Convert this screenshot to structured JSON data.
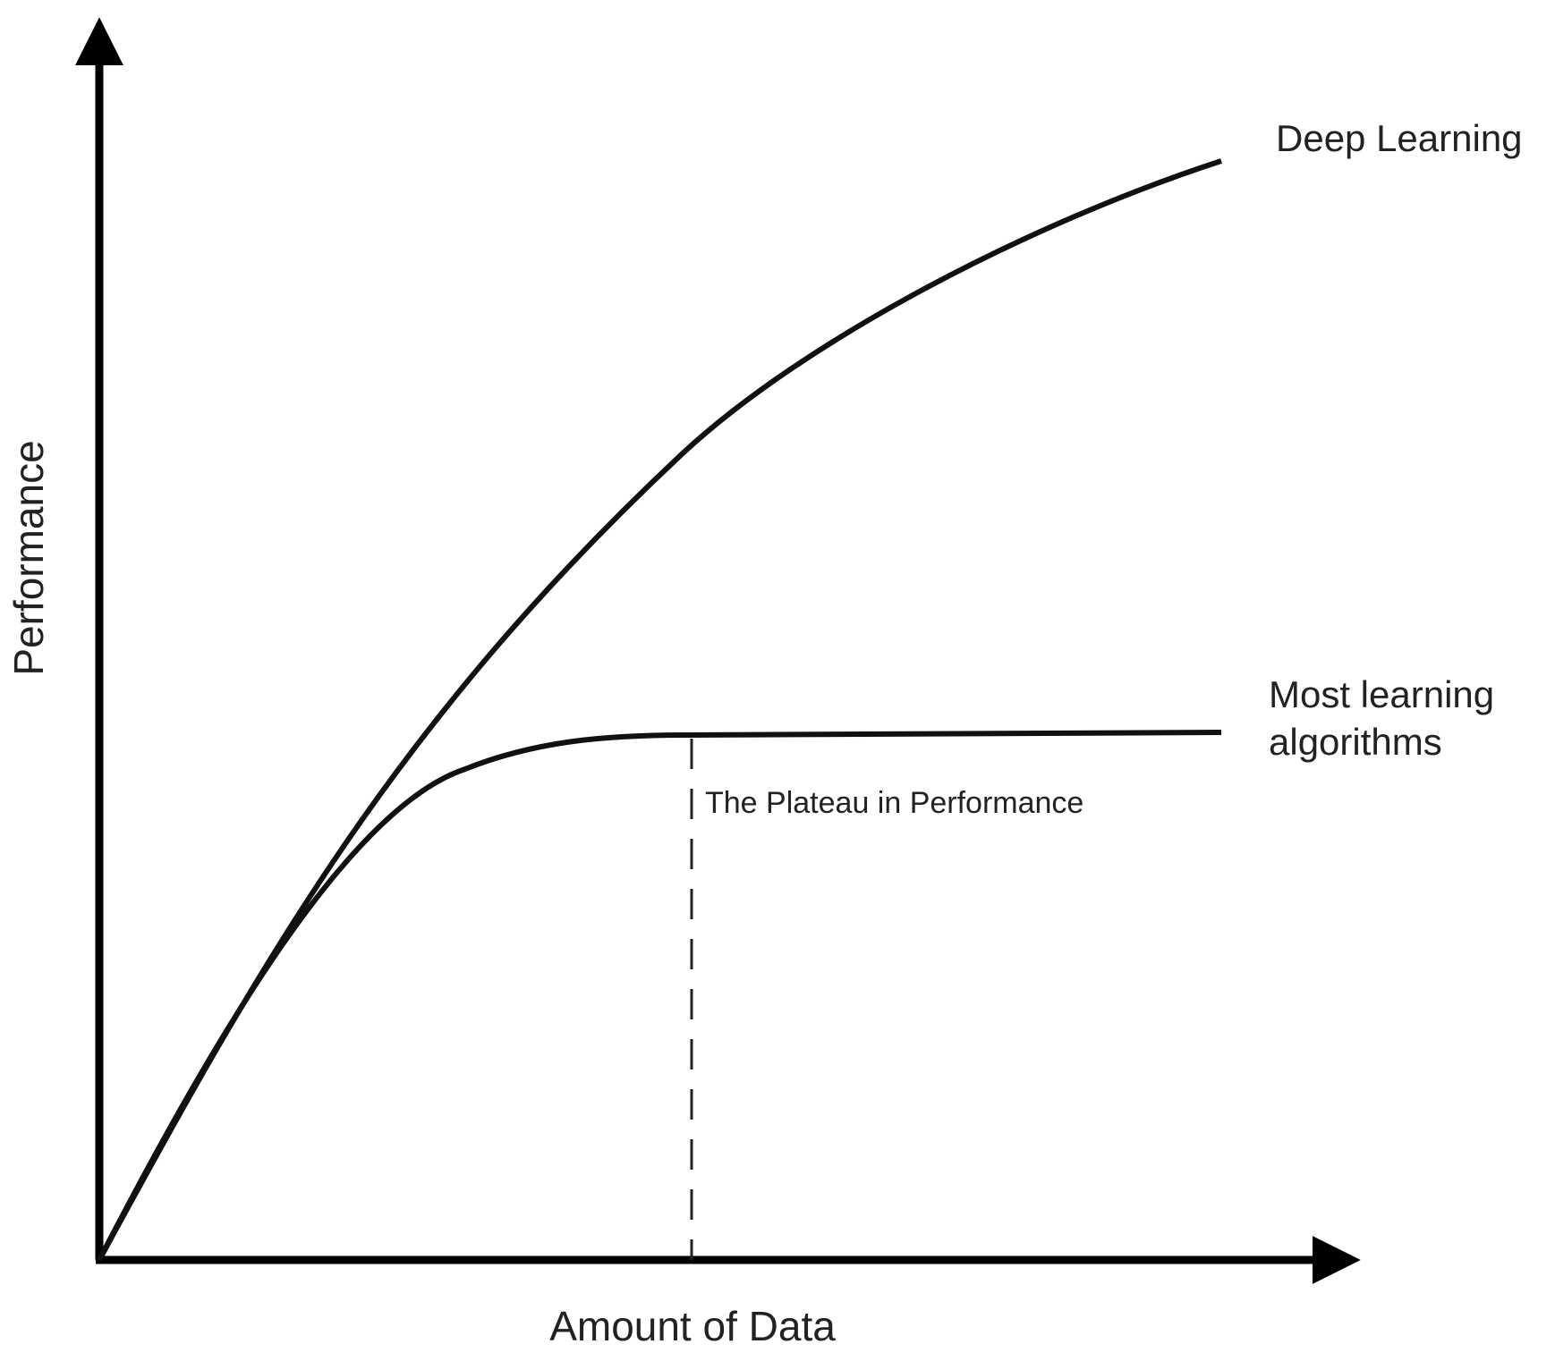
{
  "axes": {
    "x_label": "Amount of Data",
    "y_label": "Performance"
  },
  "curves": [
    {
      "label": "Deep Learning"
    },
    {
      "label_lines": [
        "Most learning",
        "algorithms"
      ]
    }
  ],
  "annotation": "The Plateau in Performance"
}
